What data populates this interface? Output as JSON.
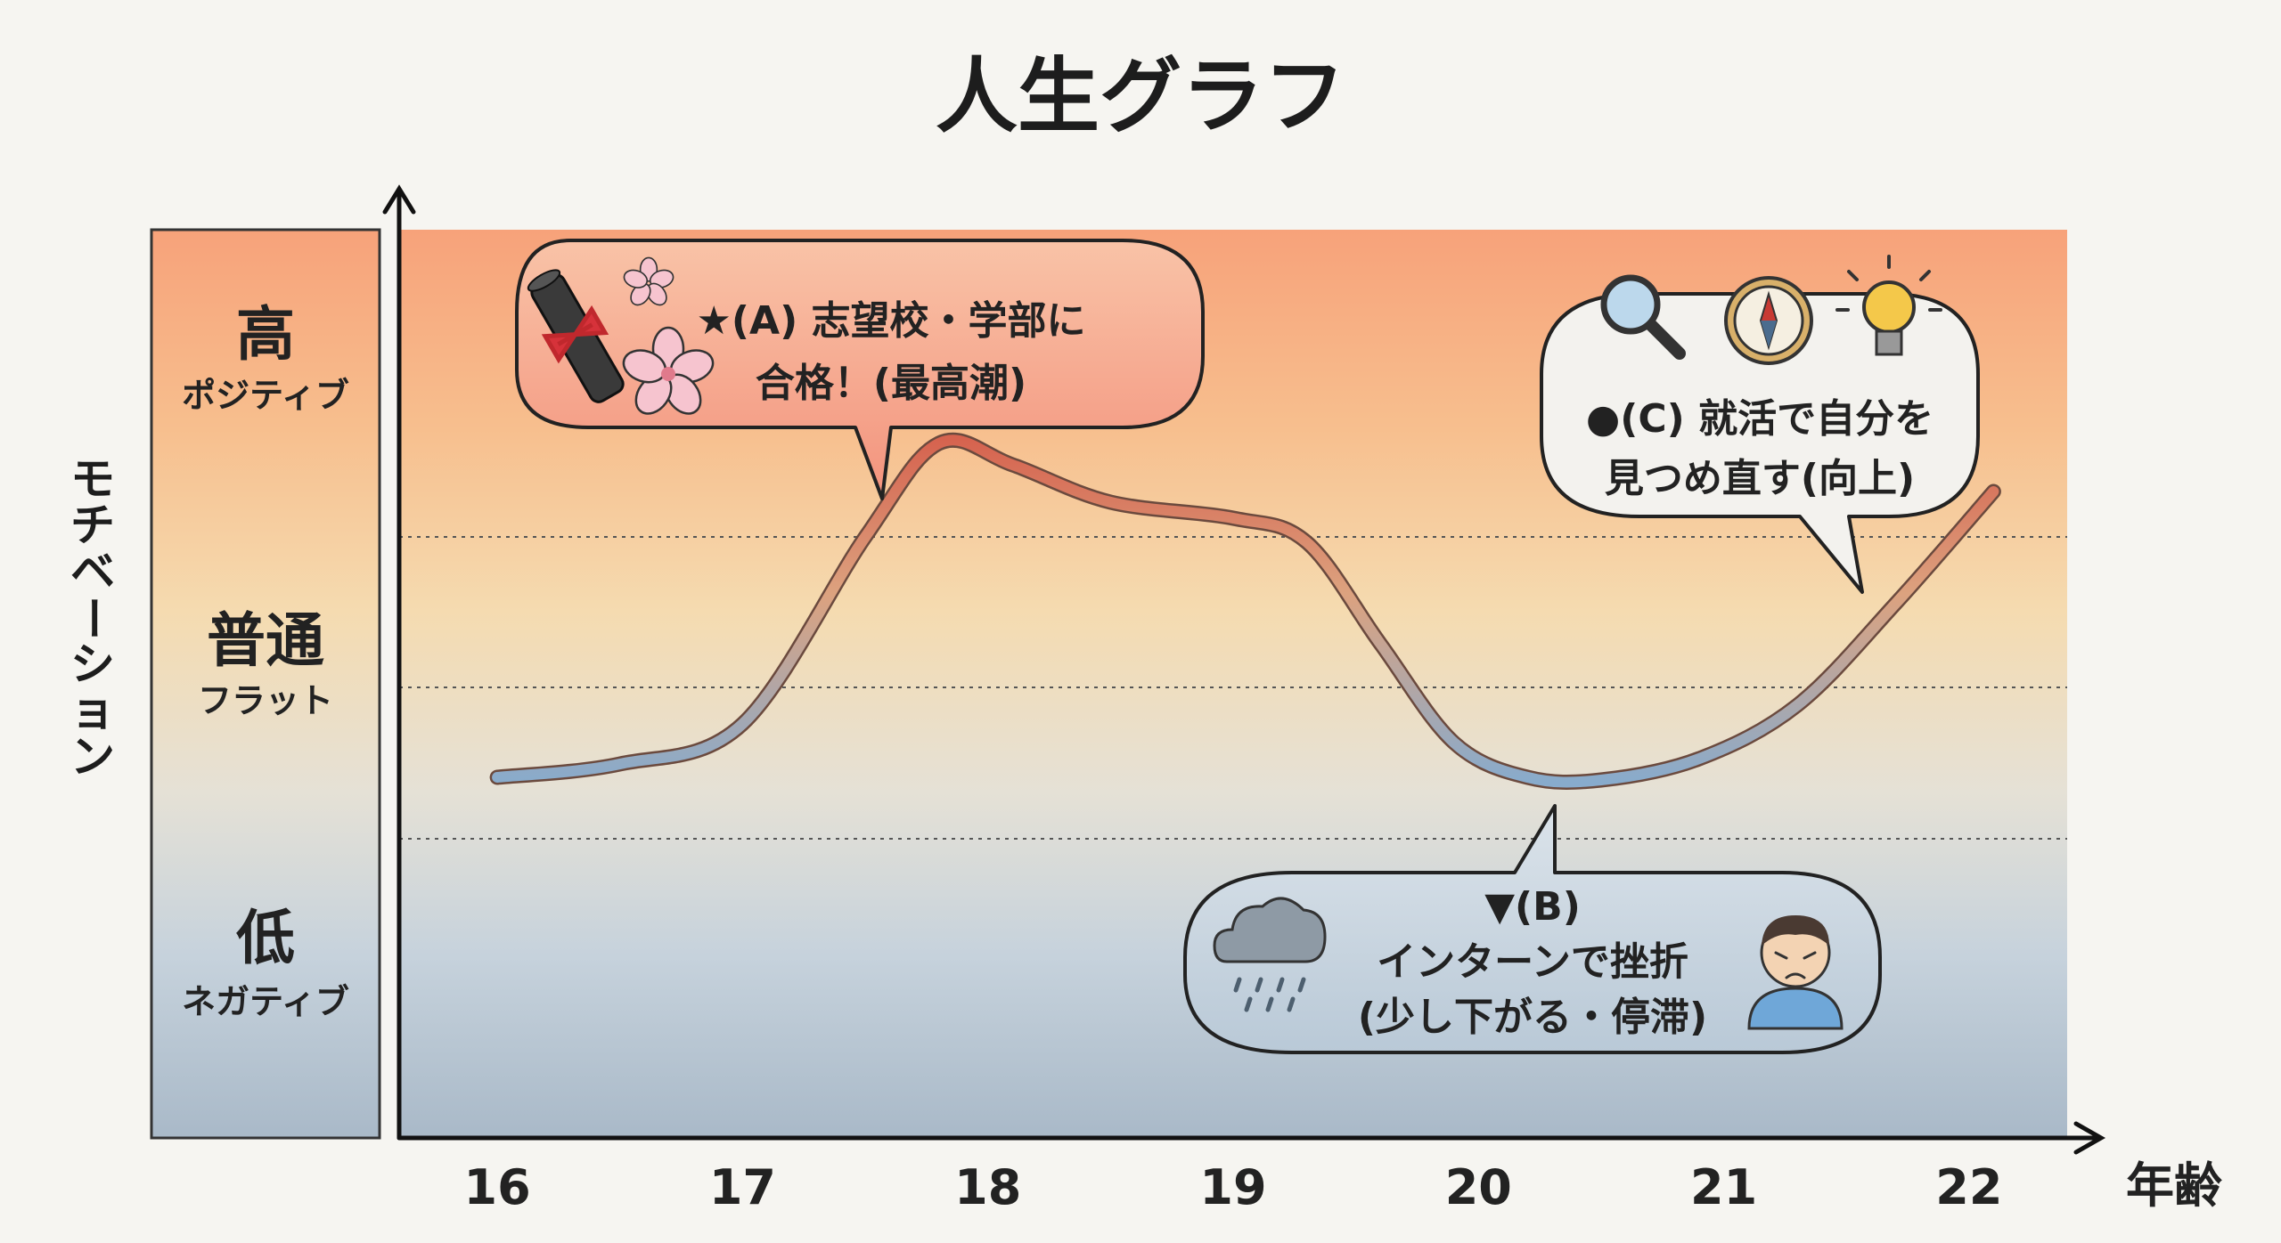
{
  "chart_data": {
    "type": "line",
    "title": "人生グラフ",
    "ylabel": "モチベーション",
    "xlabel": "年齢",
    "x": [
      16,
      16.5,
      17,
      17.5,
      17.8,
      18.1,
      18.5,
      19,
      19.3,
      19.6,
      19.9,
      20.2,
      20.5,
      20.9,
      21.3,
      21.7,
      22.1
    ],
    "y": [
      -0.45,
      -0.4,
      -0.25,
      0.45,
      0.8,
      0.72,
      0.58,
      0.52,
      0.43,
      0.05,
      -0.32,
      -0.45,
      -0.46,
      -0.38,
      -0.18,
      0.2,
      0.62
    ],
    "xticks": [
      "16",
      "17",
      "18",
      "19",
      "20",
      "21",
      "22"
    ],
    "xtick_values": [
      16,
      17,
      18,
      19,
      20,
      21,
      22
    ],
    "xlim": [
      15.6,
      22.4
    ],
    "ylim": [
      -1.8,
      1.6
    ],
    "bands": [
      {
        "key": "high",
        "main": "高",
        "sub": "ポジティブ"
      },
      {
        "key": "flat",
        "main": "普通",
        "sub": "フラット"
      },
      {
        "key": "low",
        "main": "低",
        "sub": "ネガティブ"
      }
    ],
    "grid": "dotted",
    "annotations": [
      {
        "key": "A",
        "lines": [
          "★(A) 志望校・学部に",
          "合格！(最高潮)"
        ]
      },
      {
        "key": "C",
        "lines": [
          "●(C) 就活で自分を",
          "見つめ直す(向上)"
        ]
      },
      {
        "key": "B",
        "lines": [
          "▼(B)",
          "インターンで挫折",
          "(少し下がる・停滞)"
        ]
      }
    ],
    "colors": {
      "high": "#f7a77b",
      "flat": "#f7d6a6",
      "low": "#b9c8d6",
      "line_top": "#d96b5a",
      "line_mid": "#d9a882",
      "line_low": "#8fb2d0"
    },
    "icons": [
      "graduation-scroll-icon",
      "sakura-icon",
      "magnifier-icon",
      "compass-icon",
      "lightbulb-icon",
      "rain-cloud-icon",
      "frustrated-person-icon"
    ]
  }
}
